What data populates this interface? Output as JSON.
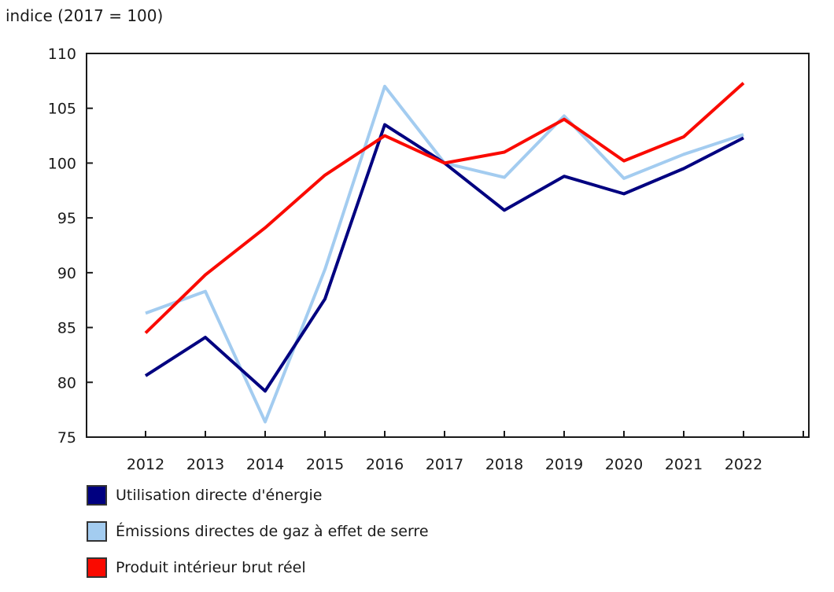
{
  "title": "indice (2017 = 100)",
  "chart_data": {
    "type": "line",
    "title": "indice (2017 = 100)",
    "x": [
      2012,
      2013,
      2014,
      2015,
      2016,
      2017,
      2018,
      2019,
      2020,
      2021,
      2022
    ],
    "series": [
      {
        "name": "Utilisation directe d'énergie",
        "color": "#000080",
        "values": [
          80.6,
          84.1,
          79.2,
          87.6,
          103.5,
          100.0,
          95.7,
          98.8,
          97.2,
          99.5,
          102.3
        ]
      },
      {
        "name": "Émissions directes de gaz à effet de serre",
        "color": "#A3CCF0",
        "values": [
          86.3,
          88.3,
          76.4,
          90.3,
          107.0,
          100.0,
          98.7,
          104.3,
          98.6,
          100.8,
          102.6
        ]
      },
      {
        "name": "Produit intérieur brut réel",
        "color": "#FA0A00",
        "values": [
          84.5,
          89.8,
          94.1,
          98.9,
          102.5,
          100.0,
          101.0,
          104.0,
          100.2,
          102.4,
          107.3
        ]
      }
    ],
    "ylim": [
      75,
      110
    ],
    "yticks": [
      75,
      80,
      85,
      90,
      95,
      100,
      105,
      110
    ],
    "ytick_step": 5,
    "xticks": [
      2012,
      2013,
      2014,
      2015,
      2016,
      2017,
      2018,
      2019,
      2020,
      2021,
      2022
    ],
    "grid": false,
    "legend_position": "bottom-left",
    "axis_color": "#1a1a1a",
    "text_color": "#1a1a1a",
    "swatch_border_color": "#333333"
  }
}
